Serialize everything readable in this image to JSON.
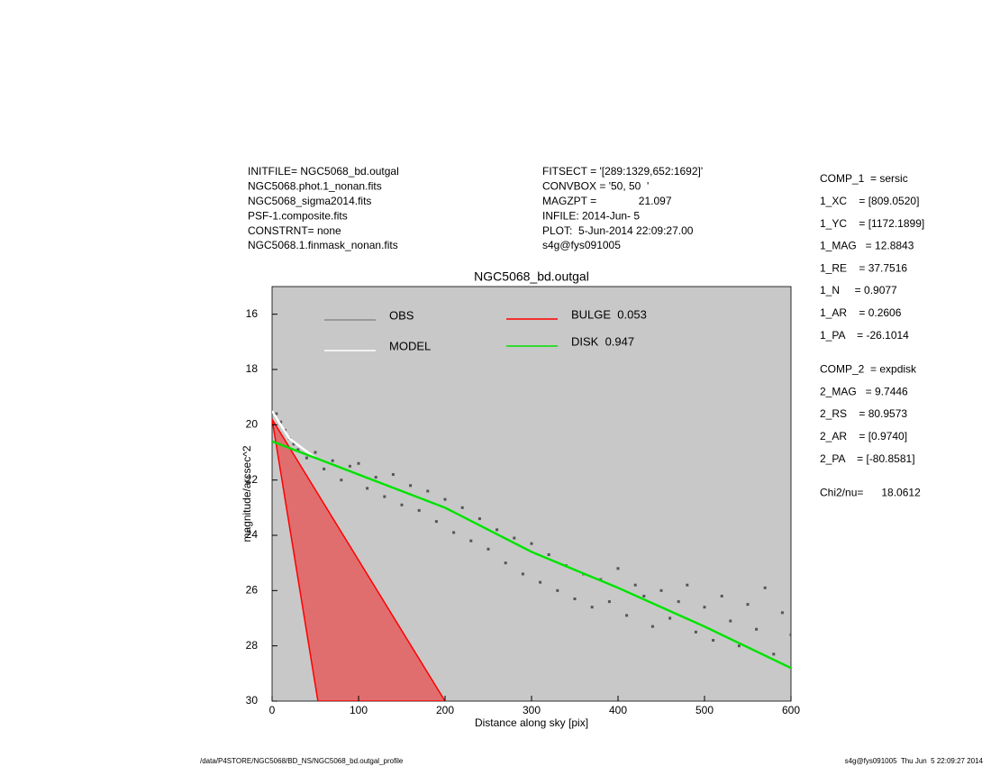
{
  "header_left": [
    "INITFILE= NGC5068_bd.outgal",
    "NGC5068.phot.1_nonan.fits",
    "NGC5068_sigma2014.fits",
    "PSF-1.composite.fits",
    "CONSTRNT= none",
    "NGC5068.1.finmask_nonan.fits"
  ],
  "header_middle": [
    "FITSECT = '[289:1329,652:1692]'",
    "CONVBOX = '50, 50  '",
    "MAGZPT =              21.097",
    "INFILE: 2014-Jun- 5",
    "PLOT:  5-Jun-2014 22:09:27.00",
    "s4g@fys091005"
  ],
  "header_right": [
    "COMP_1  = sersic",
    "1_XC    = [809.0520]",
    "1_YC    = [1172.1899]",
    "1_MAG   = 12.8843",
    "1_RE    = 37.7516",
    "1_N     = 0.9077",
    "1_AR    = 0.2606",
    "1_PA    = -26.1014",
    "COMP_2  = expdisk",
    "2_MAG   = 9.7446",
    "2_RS    = 80.9573",
    "2_AR    = [0.9740]",
    "2_PA    = [-80.8581]",
    "Chi2/nu=      18.0612"
  ],
  "footer_left": "/data/P4STORE/NGC5068/BD_NS/NGC5068_bd.outgal_profile",
  "footer_right": "s4g@fys091005  Thu Jun  5 22:09:27 2014",
  "chart_data": {
    "type": "scatter",
    "title": "NGC5068_bd.outgal",
    "x_label": "Distance along sky [pix]",
    "y_label": "magnitude/arcsec^2",
    "xlim": [
      0,
      600
    ],
    "xticks": [
      0,
      100,
      200,
      300,
      400,
      500,
      600
    ],
    "ylim": [
      15,
      30
    ],
    "y_inverted": true,
    "yticks": [
      16,
      18,
      20,
      22,
      24,
      26,
      28,
      30
    ],
    "background": "#c8c8c8",
    "series": [
      {
        "name": "OBS",
        "type": "scatter",
        "color": "#555555",
        "x": [
          5,
          10,
          15,
          20,
          25,
          30,
          40,
          50,
          60,
          70,
          80,
          90,
          100,
          110,
          120,
          130,
          140,
          150,
          160,
          170,
          180,
          190,
          200,
          210,
          220,
          230,
          240,
          250,
          260,
          270,
          280,
          290,
          300,
          310,
          320,
          330,
          340,
          350,
          360,
          370,
          380,
          390,
          400,
          410,
          420,
          430,
          440,
          450,
          460,
          470,
          480,
          490,
          500,
          510,
          520,
          530,
          540,
          550,
          560,
          570,
          580,
          590,
          600
        ],
        "values": [
          19.6,
          19.9,
          20.2,
          20.5,
          20.7,
          20.9,
          21.2,
          21.0,
          21.6,
          21.3,
          22.0,
          21.5,
          21.4,
          22.3,
          21.9,
          22.6,
          21.8,
          22.9,
          22.2,
          23.1,
          22.4,
          23.5,
          22.7,
          23.9,
          23.0,
          24.2,
          23.4,
          24.5,
          23.8,
          25.0,
          24.1,
          25.4,
          24.3,
          25.7,
          24.7,
          26.0,
          25.1,
          26.3,
          25.4,
          26.6,
          25.6,
          26.4,
          25.2,
          26.9,
          25.8,
          26.2,
          27.3,
          26.0,
          27.0,
          26.4,
          25.8,
          27.5,
          26.6,
          27.8,
          26.2,
          27.1,
          28.0,
          26.5,
          27.4,
          25.9,
          28.3,
          26.8,
          27.6
        ]
      },
      {
        "name": "MODEL",
        "type": "line",
        "color": "#ffffff",
        "x": [
          0,
          20,
          50,
          100,
          200,
          300,
          400,
          500,
          600
        ],
        "values": [
          19.5,
          20.5,
          21.2,
          21.8,
          23.0,
          24.6,
          25.9,
          27.3,
          28.8
        ]
      },
      {
        "name": "BULGE  0.053",
        "type": "area",
        "color": "#ff0000",
        "x": [
          0,
          53,
          200
        ],
        "values": [
          19.8,
          30,
          30
        ]
      },
      {
        "name": "DISK  0.947",
        "type": "line",
        "color": "#00e000",
        "x": [
          0,
          50,
          100,
          200,
          300,
          400,
          500,
          600
        ],
        "values": [
          20.6,
          21.2,
          21.8,
          23.0,
          24.6,
          25.9,
          27.3,
          28.8
        ]
      }
    ]
  }
}
